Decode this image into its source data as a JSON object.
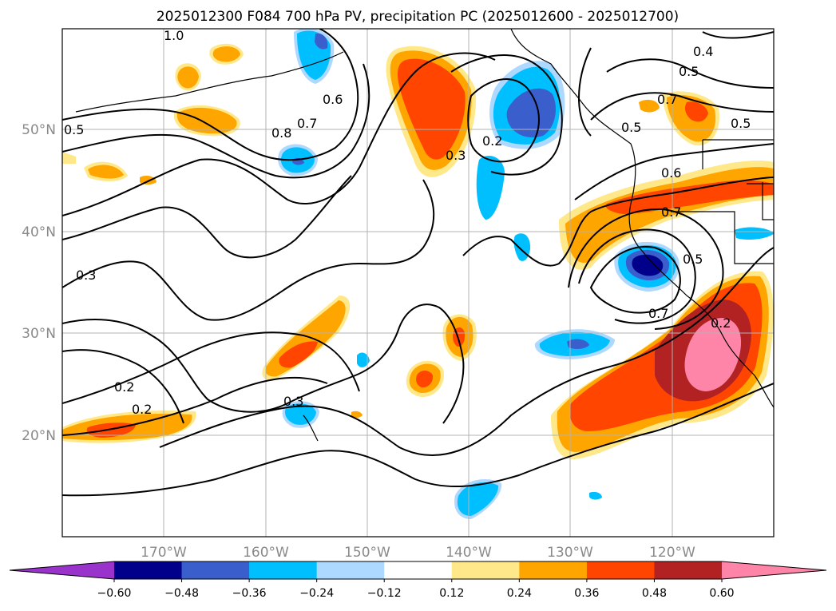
{
  "title": "2025012300 F084 700 hPa PV, precipitation PC (2025012600 - 2025012700)",
  "lat_labels": [
    "50°N",
    "40°N",
    "30°N",
    "20°N"
  ],
  "lon_labels": [
    "170°W",
    "160°W",
    "150°W",
    "140°W",
    "130°W",
    "120°W"
  ],
  "colorbar": {
    "colors": [
      "#9933cc",
      "#00008b",
      "#3a5fcd",
      "#00bfff",
      "#add8ff",
      "#ffffff",
      "#ffe88a",
      "#ffa500",
      "#ff4500",
      "#b22222",
      "#ff85a8"
    ],
    "tick_labels": [
      "−0.60",
      "−0.48",
      "−0.36",
      "−0.24",
      "−0.12",
      "0.12",
      "0.24",
      "0.36",
      "0.48",
      "0.60"
    ]
  },
  "contour_labels": [
    "1.0",
    "0.5",
    "0.8",
    "0.7",
    "0.6",
    "0.3",
    "0.2",
    "0.5",
    "0.4",
    "0.5",
    "0.7",
    "0.5",
    "0.6",
    "0.7",
    "0.5",
    "0.7",
    "0.2",
    "0.3",
    "0.2",
    "0.2",
    "0.3"
  ],
  "colors": {
    "contour": "#000000",
    "grid": "#b3b3b3",
    "axis_label": "#8a8a8a"
  }
}
